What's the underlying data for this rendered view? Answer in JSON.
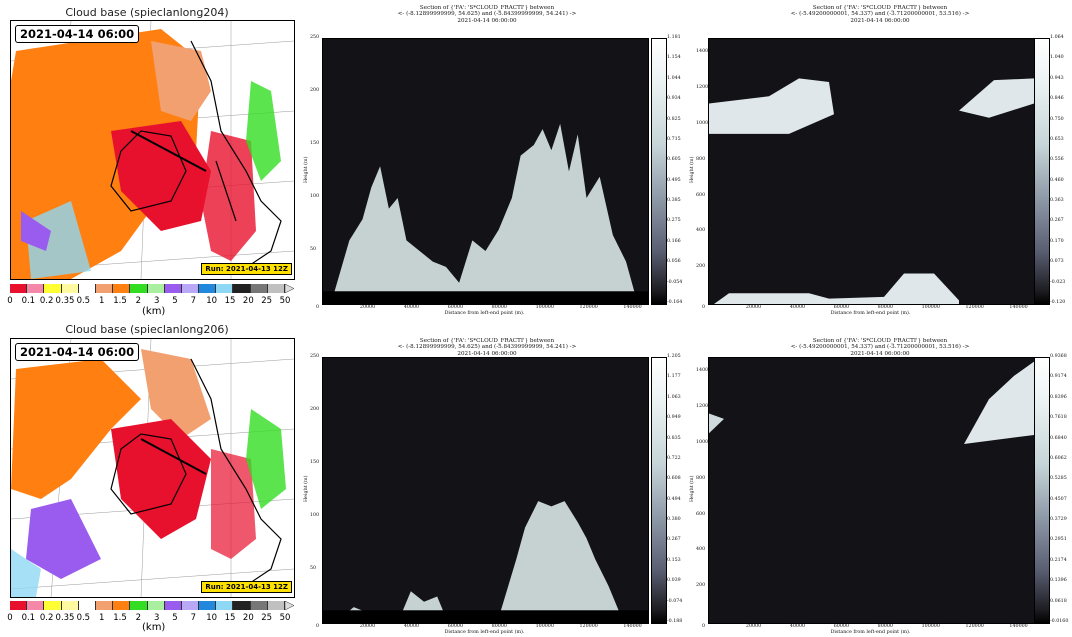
{
  "maps": [
    {
      "title": "Cloud base (spieclanlong204)",
      "time": "2021-04-14 06:00",
      "run": "Run: 2021-04-13 12Z"
    },
    {
      "title": "Cloud base (spieclanlong206)",
      "time": "2021-04-14 06:00",
      "run": "Run: 2021-04-13 12Z"
    }
  ],
  "colorbar": {
    "ticks": [
      "0",
      "0.1",
      "0.2",
      "0.35",
      "0.5",
      "1",
      "1.5",
      "2",
      "3",
      "5",
      "7",
      "10",
      "15",
      "20",
      "25",
      "50"
    ],
    "colors": [
      "#e8112d",
      "#f588a8",
      "#ffff33",
      "#fffaa0",
      "#ffffff",
      "#f2a070",
      "#ff7f10",
      "#33dd22",
      "#aaeea0",
      "#9a5cee",
      "#b8a8f5",
      "#2288dd",
      "#8ed8f5",
      "#222222",
      "#777777",
      "#c0c0c0"
    ],
    "unit": "(km)"
  },
  "chart_data": [
    {
      "type": "heatmap",
      "title": "Section of {'FA': 'S*CLOUD_FRACTI'} between",
      "subtitle": "<- (-8.12899999999, 54.625) and (-5.84399999999, 54.241) ->",
      "time": "2021-04-14 06:00:00",
      "xlabel": "Distance from left-end point (m).",
      "ylabel": "Height (m)",
      "xticks": [
        "0",
        "20000",
        "40000",
        "60000",
        "80000",
        "100000",
        "120000",
        "140000"
      ],
      "yticks": [
        "50",
        "100",
        "150",
        "200",
        "250"
      ],
      "xlim": [
        0,
        148000
      ],
      "ylim": [
        0,
        250
      ],
      "colorbar_ticks": [
        "1.181",
        "1.154",
        "1.044",
        "0.934",
        "0.825",
        "0.715",
        "0.605",
        "0.495",
        "0.385",
        "0.275",
        "0.166",
        "0.056",
        "-0.054",
        "-0.164"
      ],
      "profile": {
        "x": [
          5000,
          12000,
          18000,
          22000,
          26000,
          30000,
          34000,
          38000,
          44000,
          50000,
          56000,
          62000,
          68000,
          74000,
          80000,
          86000,
          90000,
          96000,
          100000,
          104000,
          108000,
          112000,
          116000,
          120000,
          126000,
          132000,
          138000,
          142000
        ],
        "top": [
          10,
          60,
          80,
          110,
          130,
          90,
          100,
          60,
          50,
          40,
          35,
          20,
          60,
          50,
          70,
          100,
          140,
          150,
          165,
          145,
          170,
          125,
          160,
          100,
          120,
          65,
          40,
          10
        ]
      }
    },
    {
      "type": "heatmap",
      "title": "Section of {'FA': 'S*CLOUD_FRACTI'} between",
      "subtitle": "<- (-5.49200000001, 54.337) and (-3.71200000001, 53.516) ->",
      "time": "2021-04-14 06:00:00",
      "xlabel": "Distance from left-end point (m).",
      "ylabel": "Height (m)",
      "xticks": [
        "0",
        "20000",
        "40000",
        "60000",
        "80000",
        "100000",
        "120000",
        "140000"
      ],
      "yticks": [
        "200",
        "400",
        "600",
        "800",
        "1000",
        "1200",
        "1400"
      ],
      "xlim": [
        0,
        148000
      ],
      "ylim": [
        0,
        1480
      ],
      "colorbar_ticks": [
        "1.064",
        "1.040",
        "0.943",
        "0.846",
        "0.750",
        "0.653",
        "0.556",
        "0.460",
        "0.363",
        "0.267",
        "0.170",
        "0.073",
        "-0.023",
        "-0.120"
      ]
    },
    {
      "type": "heatmap",
      "title": "Section of {'FA': 'S*CLOUD_FRACTI'} between",
      "subtitle": "<- (-8.12899999999, 54.625) and (-5.84399999999, 54.241) ->",
      "time": "2021-04-14 06:00:00",
      "xlabel": "Distance from left-end point (m).",
      "ylabel": "Height (m)",
      "xticks": [
        "0",
        "20000",
        "40000",
        "60000",
        "80000",
        "100000",
        "120000",
        "140000"
      ],
      "yticks": [
        "50",
        "100",
        "150",
        "200",
        "250"
      ],
      "xlim": [
        0,
        148000
      ],
      "ylim": [
        0,
        250
      ],
      "colorbar_ticks": [
        "1.205",
        "1.177",
        "1.063",
        "0.949",
        "0.835",
        "0.722",
        "0.608",
        "0.494",
        "0.380",
        "0.267",
        "0.153",
        "0.039",
        "-0.074",
        "-0.188"
      ],
      "profile": {
        "x": [
          8000,
          14000,
          20000,
          26000,
          32000,
          36000,
          40000,
          46000,
          52000,
          56000,
          62000,
          70000,
          80000,
          88000,
          92000,
          98000,
          104000,
          110000,
          116000,
          120000,
          124000,
          130000,
          136000
        ],
        "top": [
          5,
          15,
          10,
          5,
          5,
          10,
          30,
          20,
          25,
          5,
          10,
          5,
          5,
          60,
          90,
          115,
          110,
          115,
          95,
          80,
          60,
          35,
          5
        ]
      }
    },
    {
      "type": "heatmap",
      "title": "Section of {'FA': 'S*CLOUD_FRACTI'} between",
      "subtitle": "<- (-5.49200000001, 54.337) and (-3.71200000001, 53.516) ->",
      "time": "2021-04-14 06:00:00",
      "xlabel": "Distance from left-end point (m).",
      "ylabel": "Height (m)",
      "xticks": [
        "0",
        "20000",
        "40000",
        "60000",
        "80000",
        "100000",
        "120000",
        "140000"
      ],
      "yticks": [
        "200",
        "400",
        "600",
        "800",
        "1000",
        "1200",
        "1400"
      ],
      "xlim": [
        0,
        148000
      ],
      "ylim": [
        0,
        1480
      ],
      "colorbar_ticks": [
        "0.9368",
        "0.9174",
        "0.8396",
        "0.7618",
        "0.6840",
        "0.6062",
        "0.5285",
        "0.4507",
        "0.3729",
        "0.2951",
        "0.2174",
        "0.1396",
        "0.0618",
        "-0.0160"
      ]
    }
  ]
}
